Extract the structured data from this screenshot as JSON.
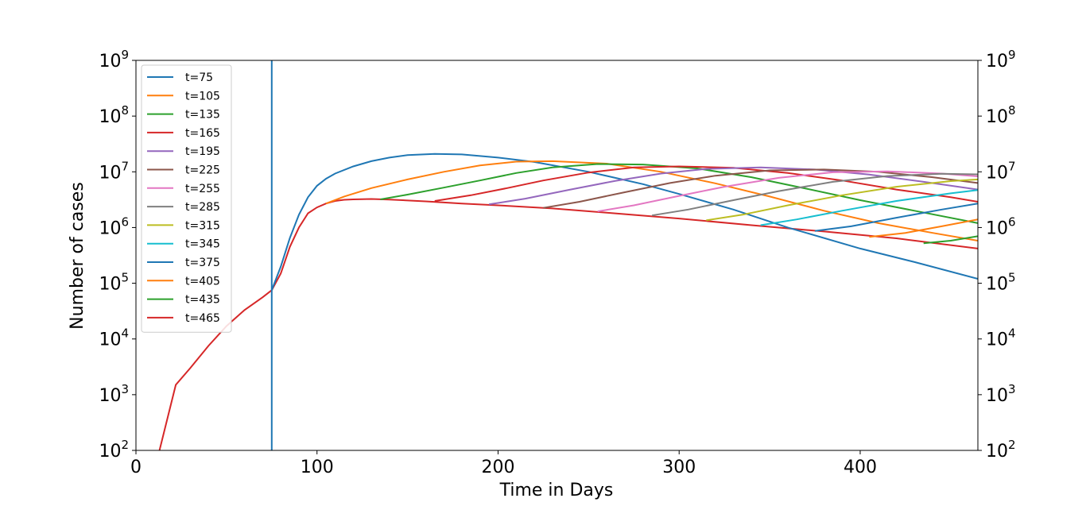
{
  "chart_data": {
    "type": "line",
    "xlabel": "Time in Days",
    "ylabel": "Number of cases",
    "xlim": [
      0,
      465
    ],
    "ylim": [
      100,
      1000000000
    ],
    "yscale": "log",
    "x_ticks": [
      0,
      100,
      200,
      300,
      400
    ],
    "y_ticks": [
      {
        "base": "10",
        "exp": "2",
        "value": 100
      },
      {
        "base": "10",
        "exp": "3",
        "value": 1000
      },
      {
        "base": "10",
        "exp": "4",
        "value": 10000
      },
      {
        "base": "10",
        "exp": "5",
        "value": 100000
      },
      {
        "base": "10",
        "exp": "6",
        "value": 1000000
      },
      {
        "base": "10",
        "exp": "7",
        "value": 10000000
      },
      {
        "base": "10",
        "exp": "8",
        "value": 100000000
      },
      {
        "base": "10",
        "exp": "9",
        "value": 1000000000
      }
    ],
    "right_axis_ticks": true,
    "grid": false,
    "legend_position": "top-left",
    "vertical_line": {
      "x": 75,
      "color": "#1f77b4"
    },
    "baseline": {
      "x": [
        0,
        13,
        22,
        30,
        40,
        50,
        60,
        70,
        75,
        80,
        85,
        90,
        95,
        100,
        105,
        110,
        115,
        120,
        130,
        140,
        160,
        180,
        200,
        230,
        260,
        300,
        340,
        380,
        420,
        465
      ],
      "y": [
        20,
        100,
        1500,
        3000,
        7500,
        17000,
        33000,
        56000,
        75000,
        150000,
        450000,
        1000000,
        1800000,
        2300000,
        2700000,
        3000000,
        3150000,
        3200000,
        3250000,
        3180000,
        2950000,
        2700000,
        2500000,
        2200000,
        1850000,
        1450000,
        1100000,
        850000,
        640000,
        420000
      ]
    },
    "series": [
      {
        "name": "t=75",
        "color": "#1f77b4",
        "x": [
          75,
          80,
          85,
          90,
          95,
          100,
          105,
          110,
          120,
          130,
          140,
          150,
          165,
          180,
          200,
          220,
          250,
          280,
          300,
          330,
          360,
          400,
          430,
          465
        ],
        "y": [
          75000,
          200000,
          650000,
          1700000,
          3500000,
          5600000,
          7500000,
          9300000,
          12500000,
          15500000,
          18000000,
          20000000,
          21000000,
          20500000,
          18000000,
          15000000,
          10000000,
          6000000,
          4000000,
          2100000,
          1000000,
          420000,
          240000,
          120000
        ]
      },
      {
        "name": "t=105",
        "color": "#ff7f0e",
        "x": [
          105,
          115,
          130,
          150,
          170,
          190,
          210,
          230,
          260,
          290,
          320,
          350,
          380,
          410,
          440,
          465
        ],
        "y": [
          2700000,
          3600000,
          5100000,
          7300000,
          10000000,
          13000000,
          15200000,
          15500000,
          14000000,
          10000000,
          6200000,
          3600000,
          2000000,
          1200000,
          800000,
          580000
        ]
      },
      {
        "name": "t=135",
        "color": "#2ca02c",
        "x": [
          135,
          150,
          170,
          190,
          210,
          230,
          255,
          280,
          310,
          340,
          370,
          400,
          430,
          465
        ],
        "y": [
          3200000,
          3900000,
          5200000,
          7000000,
          9500000,
          12000000,
          13800000,
          13500000,
          11500000,
          8000000,
          5000000,
          3100000,
          2000000,
          1200000
        ]
      },
      {
        "name": "t=165",
        "color": "#d62728",
        "x": [
          165,
          185,
          205,
          225,
          250,
          275,
          300,
          330,
          360,
          390,
          420,
          450,
          465
        ],
        "y": [
          3000000,
          3800000,
          5100000,
          7000000,
          9700000,
          12000000,
          12500000,
          11800000,
          9500000,
          7000000,
          4800000,
          3500000,
          2900000
        ]
      },
      {
        "name": "t=195",
        "color": "#9467bd",
        "x": [
          195,
          215,
          240,
          265,
          290,
          315,
          345,
          375,
          405,
          435,
          465
        ],
        "y": [
          2600000,
          3300000,
          4800000,
          6900000,
          9300000,
          11300000,
          12000000,
          11000000,
          8900000,
          6600000,
          4800000
        ]
      },
      {
        "name": "t=225",
        "color": "#8c564b",
        "x": [
          225,
          245,
          270,
          295,
          320,
          350,
          380,
          410,
          440,
          465
        ],
        "y": [
          2250000,
          2900000,
          4300000,
          6300000,
          8500000,
          10600000,
          11000000,
          10000000,
          8000000,
          6300000
        ]
      },
      {
        "name": "t=255",
        "color": "#e377c2",
        "x": [
          255,
          275,
          300,
          325,
          355,
          385,
          415,
          445,
          465
        ],
        "y": [
          1950000,
          2500000,
          3700000,
          5400000,
          7800000,
          9800000,
          10200000,
          9300000,
          8300000
        ]
      },
      {
        "name": "t=285",
        "color": "#7f7f7f",
        "x": [
          285,
          305,
          330,
          355,
          385,
          415,
          445,
          465
        ],
        "y": [
          1650000,
          2100000,
          3100000,
          4500000,
          6600000,
          8400000,
          9200000,
          9000000
        ]
      },
      {
        "name": "t=315",
        "color": "#bcbd22",
        "x": [
          315,
          335,
          360,
          390,
          420,
          450,
          465
        ],
        "y": [
          1350000,
          1700000,
          2500000,
          3800000,
          5400000,
          6800000,
          7300000
        ]
      },
      {
        "name": "t=345",
        "color": "#17becf",
        "x": [
          345,
          365,
          390,
          420,
          450,
          465
        ],
        "y": [
          1100000,
          1400000,
          2000000,
          3000000,
          4100000,
          4700000
        ]
      },
      {
        "name": "t=375",
        "color": "#1f77b4",
        "x": [
          375,
          395,
          420,
          445,
          465
        ],
        "y": [
          870000,
          1050000,
          1500000,
          2100000,
          2700000
        ]
      },
      {
        "name": "t=405",
        "color": "#ff7f0e",
        "x": [
          405,
          425,
          445,
          465
        ],
        "y": [
          680000,
          800000,
          1050000,
          1400000
        ]
      },
      {
        "name": "t=435",
        "color": "#2ca02c",
        "x": [
          435,
          450,
          465
        ],
        "y": [
          520000,
          580000,
          700000
        ]
      },
      {
        "name": "t=465",
        "color": "#d62728",
        "x": [
          465
        ],
        "y": [
          420000
        ]
      }
    ]
  }
}
